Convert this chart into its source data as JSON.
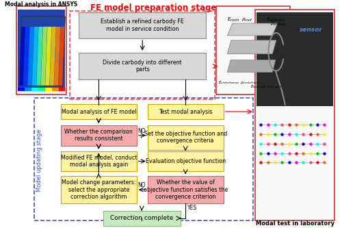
{
  "title": "FE model preparation stage",
  "title_color": "#FF0000",
  "bg_color": "#FFFFFF",
  "ansys_label": "Modal analysis in ANSYS",
  "lab_label": "Modal test in laboratory",
  "sensor_label": "sensor",
  "prep_box1": "Establish a refined carbody FE\nmodel in service condition",
  "prep_box2": "Divide carbody into different\nparts",
  "prep_border_color": "#FF4444",
  "prep_box_color": "#D8D8D8",
  "box_yellow": "#FFF2A0",
  "box_yellow_border": "#C8A800",
  "box_pink": "#F2AAAA",
  "box_pink_border": "#CC6666",
  "box_green": "#C8E8C0",
  "box_green_border": "#80B880",
  "update_border_color": "#4455CC",
  "update_stage_label": "Model updating stage",
  "left_box1": "Modal analysis of FE model",
  "left_box2": "Whether the comparison\nresults consistent",
  "left_box3": "Modified FE model, conduct\nmodal analysis again",
  "left_box4": "Model change parameters:\nselect the appropriate\ncorrection algorithm",
  "right_box1": "Test modal analysis",
  "right_box2": "Set the objective function and\nconvergence criteria",
  "right_box3": "Evaluation objective function",
  "right_box4": "Whether the value of\nobjective function satisfies the\nconvergence criterion",
  "bottom_box": "Correction complete",
  "no_label": "NO",
  "yes_label": "YES"
}
